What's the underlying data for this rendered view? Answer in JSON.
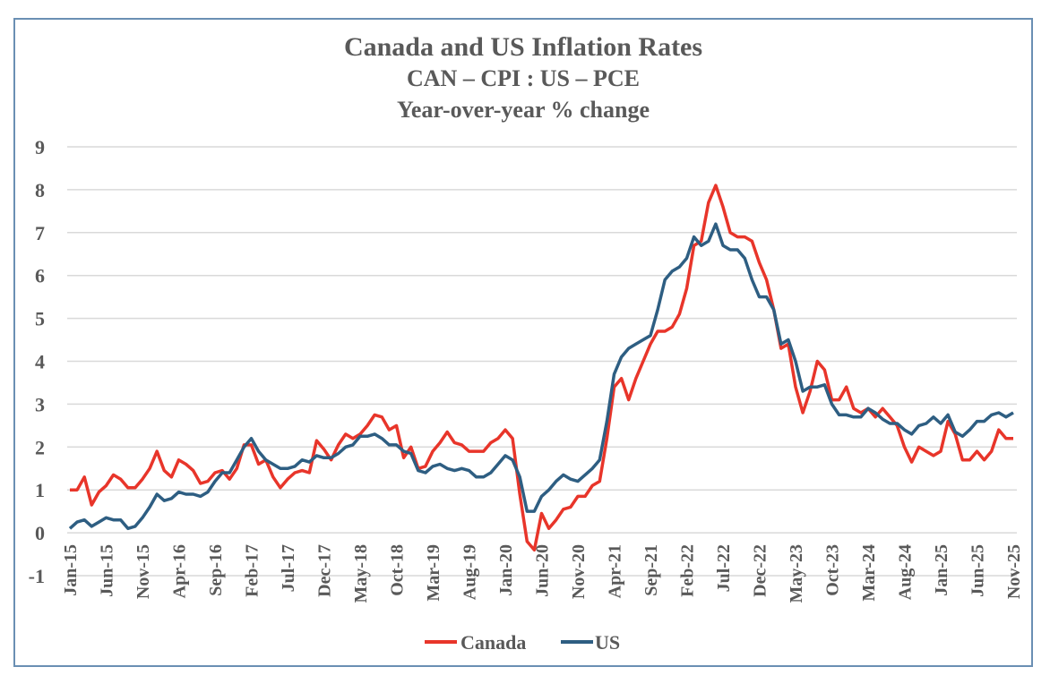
{
  "chart_data": {
    "type": "line",
    "title": "Canada and US Inflation Rates",
    "subtitle": "CAN – CPI : US – PCE",
    "subtitle2": "Year-over-year % change",
    "xlabel": "",
    "ylabel": "",
    "ylim": [
      -1,
      9
    ],
    "yticks": [
      "9",
      "8",
      "7",
      "6",
      "5",
      "4",
      "3",
      "2",
      "1",
      "0",
      "-1"
    ],
    "ytick_values": [
      9,
      8,
      7,
      6,
      5,
      4,
      3,
      2,
      1,
      0,
      -1
    ],
    "grid": true,
    "legend_position": "bottom-center",
    "x_start": "Jan-15",
    "x_end": "Nov-25",
    "x_frequency": "monthly",
    "x_tick_every_months": 5,
    "xtick_labels": [
      "Jan-15",
      "Jun-15",
      "Nov-15",
      "Apr-16",
      "Sep-16",
      "Feb-17",
      "Jul-17",
      "Dec-17",
      "May-18",
      "Oct-18",
      "Mar-19",
      "Aug-19",
      "Jan-20",
      "Jun-20",
      "Nov-20",
      "Apr-21",
      "Sep-21",
      "Feb-22",
      "Jul-22",
      "Dec-22",
      "May-23",
      "Oct-23",
      "Mar-24",
      "Aug-24",
      "Jan-25",
      "Jun-25",
      "Nov-25"
    ],
    "series": [
      {
        "name": "Canada",
        "color": "#e8352a",
        "values": [
          1.0,
          1.0,
          1.3,
          0.65,
          0.95,
          1.1,
          1.35,
          1.25,
          1.05,
          1.05,
          1.25,
          1.5,
          1.9,
          1.45,
          1.3,
          1.7,
          1.6,
          1.45,
          1.15,
          1.2,
          1.4,
          1.45,
          1.25,
          1.5,
          2.05,
          2.05,
          1.6,
          1.7,
          1.3,
          1.05,
          1.25,
          1.4,
          1.45,
          1.4,
          2.15,
          1.95,
          1.7,
          2.05,
          2.3,
          2.2,
          2.3,
          2.5,
          2.75,
          2.7,
          2.4,
          2.5,
          1.75,
          2.0,
          1.5,
          1.55,
          1.9,
          2.1,
          2.35,
          2.1,
          2.05,
          1.9,
          1.9,
          1.9,
          2.1,
          2.2,
          2.4,
          2.2,
          0.9,
          -0.2,
          -0.4,
          0.45,
          0.1,
          0.3,
          0.55,
          0.6,
          0.85,
          0.85,
          1.1,
          1.2,
          2.2,
          3.4,
          3.6,
          3.1,
          3.6,
          4.0,
          4.4,
          4.7,
          4.7,
          4.8,
          5.1,
          5.7,
          6.7,
          6.8,
          7.7,
          8.1,
          7.6,
          7.0,
          6.9,
          6.9,
          6.8,
          6.3,
          5.9,
          5.2,
          4.3,
          4.4,
          3.4,
          2.8,
          3.3,
          4.0,
          3.8,
          3.1,
          3.1,
          3.4,
          2.9,
          2.8,
          2.9,
          2.7,
          2.9,
          2.7,
          2.5,
          2.0,
          1.65,
          2.0,
          1.9,
          1.8,
          1.9,
          2.6,
          2.3,
          1.7,
          1.7,
          1.9,
          1.7,
          1.9,
          2.4,
          2.2,
          2.2
        ]
      },
      {
        "name": "US",
        "color": "#2e5e82",
        "values": [
          0.1,
          0.25,
          0.3,
          0.15,
          0.25,
          0.35,
          0.3,
          0.3,
          0.1,
          0.15,
          0.35,
          0.6,
          0.9,
          0.75,
          0.8,
          0.95,
          0.9,
          0.9,
          0.85,
          0.95,
          1.2,
          1.4,
          1.4,
          1.7,
          2.0,
          2.2,
          1.9,
          1.7,
          1.6,
          1.5,
          1.5,
          1.55,
          1.7,
          1.65,
          1.8,
          1.75,
          1.75,
          1.85,
          2.0,
          2.05,
          2.25,
          2.25,
          2.3,
          2.2,
          2.05,
          2.05,
          1.9,
          1.85,
          1.45,
          1.4,
          1.55,
          1.6,
          1.5,
          1.45,
          1.5,
          1.45,
          1.3,
          1.3,
          1.4,
          1.6,
          1.8,
          1.7,
          1.3,
          0.5,
          0.5,
          0.85,
          1.0,
          1.2,
          1.35,
          1.25,
          1.2,
          1.35,
          1.5,
          1.7,
          2.6,
          3.7,
          4.1,
          4.3,
          4.4,
          4.5,
          4.6,
          5.2,
          5.9,
          6.1,
          6.2,
          6.4,
          6.9,
          6.7,
          6.8,
          7.2,
          6.7,
          6.6,
          6.6,
          6.4,
          5.9,
          5.5,
          5.5,
          5.2,
          4.4,
          4.5,
          4.0,
          3.3,
          3.4,
          3.4,
          3.45,
          3.0,
          2.75,
          2.75,
          2.7,
          2.7,
          2.9,
          2.8,
          2.65,
          2.55,
          2.55,
          2.4,
          2.3,
          2.5,
          2.55,
          2.7,
          2.55,
          2.75,
          2.35,
          2.25,
          2.4,
          2.6,
          2.6,
          2.75,
          2.8,
          2.7,
          2.8
        ]
      }
    ]
  },
  "colors": {
    "frame": "#6a8fb3",
    "grid": "#d9d9d9",
    "text": "#595959"
  }
}
